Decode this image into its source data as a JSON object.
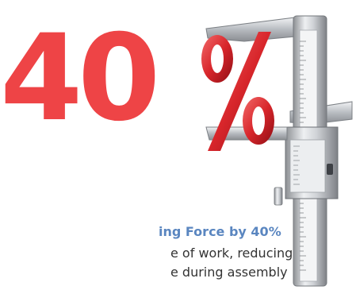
{
  "graphic": {
    "digit_four": "4",
    "digit_zero": "0",
    "percent_symbol": "%",
    "accent_color": "#ee4446",
    "icon": "caliper-icon"
  },
  "text": {
    "headline": "ing Force by 40%",
    "line1": "e of work, reducing",
    "line2": "e during assembly"
  },
  "colors": {
    "headline": "#5a86c0",
    "body": "#333333"
  }
}
